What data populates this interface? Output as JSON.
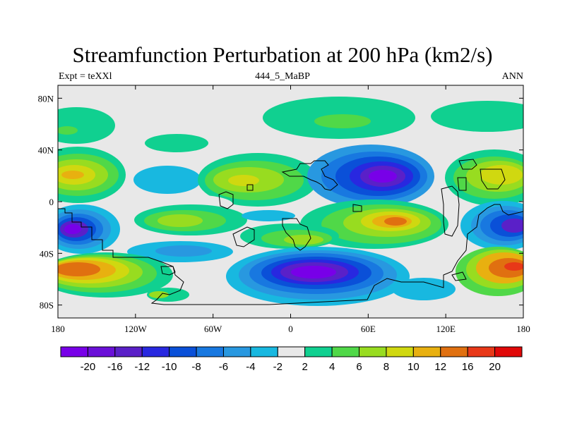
{
  "title": "Streamfunction Perturbation at 200 hPa (km2/s)",
  "left_string": "Expt = teXXl",
  "center_string": "444_5_MaBP",
  "right_string": "ANN",
  "x_axis": {
    "ticks": [
      {
        "value": -180,
        "label": "180"
      },
      {
        "value": -120,
        "label": "120W"
      },
      {
        "value": -60,
        "label": "60W"
      },
      {
        "value": 0,
        "label": "0"
      },
      {
        "value": 60,
        "label": "60E"
      },
      {
        "value": 120,
        "label": "120E"
      },
      {
        "value": 180,
        "label": "180"
      }
    ]
  },
  "y_axis": {
    "ticks": [
      {
        "value": 80,
        "label": "80N"
      },
      {
        "value": 40,
        "label": "40N"
      },
      {
        "value": 0,
        "label": "0"
      },
      {
        "value": -40,
        "label": "40S"
      },
      {
        "value": -80,
        "label": "80S"
      }
    ]
  },
  "colorbar": {
    "colors": [
      "#7800e8",
      "#6a10d8",
      "#5a20c8",
      "#2828e0",
      "#0a50d8",
      "#1878e0",
      "#2898e0",
      "#18b8e0",
      "#e8e8e8",
      "#10d090",
      "#50d848",
      "#98dc20",
      "#d0d810",
      "#e8b010",
      "#e07010",
      "#e83818",
      "#e00808"
    ],
    "labels": [
      "-20",
      "-16",
      "-12",
      "-10",
      "-8",
      "-6",
      "-4",
      "-2",
      "2",
      "4",
      "6",
      "8",
      "10",
      "12",
      "16",
      "20"
    ]
  }
}
